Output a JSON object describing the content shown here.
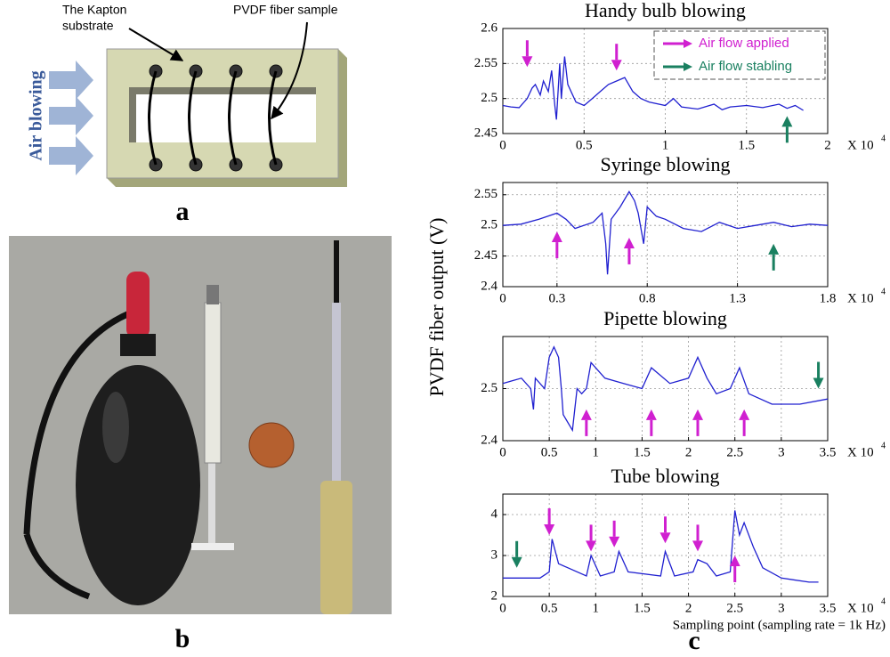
{
  "diagram": {
    "panel_label": "a",
    "air_label": "Air blowing",
    "substrate_label": [
      "The Kapton",
      "substrate"
    ],
    "fiber_label": "PVDF fiber sample"
  },
  "photo": {
    "panel_label": "b"
  },
  "figure_c": {
    "panel_label": "c",
    "y_label": "PVDF fiber output  (V)",
    "x_label": "Sampling point (sampling rate = 1k Hz)"
  },
  "chart_data": [
    {
      "type": "line",
      "title": "Handy bulb blowing",
      "x_multiplier": "X 10",
      "x_multiplier_power": "4",
      "xlim": [
        0,
        2
      ],
      "xticks": [
        0,
        0.5,
        1,
        1.5,
        2
      ],
      "ylim": [
        2.45,
        2.6
      ],
      "yticks": [
        2.45,
        2.5,
        2.55,
        2.6
      ],
      "grid": true,
      "series": [
        {
          "color": "#2020d0",
          "x": [
            0,
            0.05,
            0.1,
            0.15,
            0.18,
            0.2,
            0.23,
            0.25,
            0.28,
            0.3,
            0.32,
            0.33,
            0.35,
            0.36,
            0.38,
            0.4,
            0.45,
            0.5,
            0.55,
            0.6,
            0.65,
            0.7,
            0.75,
            0.8,
            0.85,
            0.9,
            1.0,
            1.05,
            1.1,
            1.2,
            1.3,
            1.35,
            1.4,
            1.5,
            1.6,
            1.7,
            1.75,
            1.8,
            1.85
          ],
          "values": [
            2.49,
            2.488,
            2.487,
            2.5,
            2.515,
            2.52,
            2.505,
            2.525,
            2.51,
            2.54,
            2.49,
            2.47,
            2.55,
            2.5,
            2.56,
            2.52,
            2.495,
            2.49,
            2.5,
            2.51,
            2.52,
            2.525,
            2.53,
            2.51,
            2.5,
            2.495,
            2.49,
            2.5,
            2.488,
            2.485,
            2.492,
            2.484,
            2.488,
            2.49,
            2.487,
            2.492,
            2.486,
            2.49,
            2.483
          ]
        }
      ],
      "legend": [
        {
          "label": "Air flow applied",
          "color": "#d020d0"
        },
        {
          "label": "Air flow stabling",
          "color": "#1a8060"
        }
      ],
      "annotations": [
        {
          "x": 0.15,
          "y": 2.545,
          "color": "#d020d0",
          "direction": "down"
        },
        {
          "x": 0.7,
          "y": 2.54,
          "color": "#d020d0",
          "direction": "down"
        },
        {
          "x": 1.75,
          "y": 2.475,
          "color": "#1a8060",
          "direction": "up"
        }
      ]
    },
    {
      "type": "line",
      "title": "Syringe blowing",
      "x_multiplier": "X 10",
      "x_multiplier_power": "4",
      "xlim": [
        0,
        1.8
      ],
      "xticks": [
        0,
        0.3,
        0.8,
        1.3,
        1.8
      ],
      "ylim": [
        2.4,
        2.57
      ],
      "yticks": [
        2.4,
        2.45,
        2.5,
        2.55
      ],
      "grid": true,
      "series": [
        {
          "color": "#2020d0",
          "x": [
            0,
            0.1,
            0.2,
            0.3,
            0.35,
            0.4,
            0.5,
            0.55,
            0.57,
            0.58,
            0.6,
            0.65,
            0.7,
            0.73,
            0.75,
            0.78,
            0.8,
            0.85,
            0.9,
            1.0,
            1.1,
            1.2,
            1.3,
            1.4,
            1.5,
            1.6,
            1.7,
            1.8
          ],
          "values": [
            2.5,
            2.502,
            2.51,
            2.52,
            2.51,
            2.495,
            2.505,
            2.52,
            2.47,
            2.42,
            2.51,
            2.53,
            2.555,
            2.54,
            2.52,
            2.47,
            2.53,
            2.515,
            2.51,
            2.495,
            2.49,
            2.505,
            2.495,
            2.5,
            2.505,
            2.498,
            2.502,
            2.5
          ]
        }
      ],
      "annotations": [
        {
          "x": 0.3,
          "y": 2.49,
          "color": "#d020d0",
          "direction": "up"
        },
        {
          "x": 0.7,
          "y": 2.48,
          "color": "#d020d0",
          "direction": "up"
        },
        {
          "x": 1.5,
          "y": 2.47,
          "color": "#1a8060",
          "direction": "up"
        }
      ]
    },
    {
      "type": "line",
      "title": "Pipette blowing",
      "x_multiplier": "X 10",
      "x_multiplier_power": "4",
      "xlim": [
        0,
        3.5
      ],
      "xticks": [
        0,
        0.5,
        1,
        1.5,
        2,
        2.5,
        3,
        3.5
      ],
      "ylim": [
        2.4,
        2.6
      ],
      "yticks": [
        2.4,
        2.5
      ],
      "grid": true,
      "series": [
        {
          "color": "#2020d0",
          "x": [
            0,
            0.1,
            0.2,
            0.3,
            0.33,
            0.35,
            0.45,
            0.5,
            0.55,
            0.6,
            0.63,
            0.65,
            0.75,
            0.8,
            0.85,
            0.9,
            0.95,
            1.1,
            1.3,
            1.5,
            1.6,
            1.8,
            2.0,
            2.1,
            2.2,
            2.3,
            2.45,
            2.55,
            2.65,
            2.9,
            3.2,
            3.5
          ],
          "values": [
            2.51,
            2.515,
            2.52,
            2.5,
            2.46,
            2.52,
            2.5,
            2.56,
            2.58,
            2.56,
            2.5,
            2.45,
            2.42,
            2.5,
            2.49,
            2.5,
            2.55,
            2.52,
            2.51,
            2.5,
            2.54,
            2.51,
            2.52,
            2.56,
            2.52,
            2.49,
            2.5,
            2.54,
            2.49,
            2.47,
            2.47,
            2.48
          ]
        }
      ],
      "annotations": [
        {
          "x": 0.9,
          "y": 2.46,
          "color": "#d020d0",
          "direction": "up"
        },
        {
          "x": 1.6,
          "y": 2.46,
          "color": "#d020d0",
          "direction": "up"
        },
        {
          "x": 2.1,
          "y": 2.46,
          "color": "#d020d0",
          "direction": "up"
        },
        {
          "x": 2.6,
          "y": 2.46,
          "color": "#d020d0",
          "direction": "up"
        },
        {
          "x": 3.4,
          "y": 2.5,
          "color": "#1a8060",
          "direction": "down"
        }
      ]
    },
    {
      "type": "line",
      "title": "Tube blowing",
      "x_multiplier": "X 10",
      "x_multiplier_power": "4",
      "xlim": [
        0,
        3.5
      ],
      "xticks": [
        0,
        0.5,
        1,
        1.5,
        2,
        2.5,
        3,
        3.5
      ],
      "ylim": [
        2,
        4.5
      ],
      "yticks": [
        2,
        3,
        4
      ],
      "grid": true,
      "series": [
        {
          "color": "#2020d0",
          "x": [
            0,
            0.4,
            0.5,
            0.53,
            0.6,
            0.9,
            0.95,
            1.05,
            1.2,
            1.25,
            1.35,
            1.7,
            1.75,
            1.85,
            2.05,
            2.1,
            2.2,
            2.3,
            2.45,
            2.5,
            2.55,
            2.6,
            2.7,
            2.8,
            3.0,
            3.3,
            3.4
          ],
          "values": [
            2.45,
            2.45,
            2.6,
            3.4,
            2.8,
            2.5,
            3.0,
            2.5,
            2.6,
            3.1,
            2.6,
            2.5,
            3.1,
            2.5,
            2.6,
            2.9,
            2.8,
            2.5,
            2.6,
            4.1,
            3.5,
            3.8,
            3.2,
            2.7,
            2.45,
            2.35,
            2.35
          ]
        }
      ],
      "annotations": [
        {
          "x": 0.15,
          "y": 2.7,
          "color": "#1a8060",
          "direction": "down"
        },
        {
          "x": 0.5,
          "y": 3.5,
          "color": "#d020d0",
          "direction": "down"
        },
        {
          "x": 0.95,
          "y": 3.1,
          "color": "#d020d0",
          "direction": "down"
        },
        {
          "x": 1.2,
          "y": 3.2,
          "color": "#d020d0",
          "direction": "down"
        },
        {
          "x": 1.75,
          "y": 3.3,
          "color": "#d020d0",
          "direction": "down"
        },
        {
          "x": 2.1,
          "y": 3.1,
          "color": "#d020d0",
          "direction": "down"
        },
        {
          "x": 2.5,
          "y": 3.0,
          "color": "#d020d0",
          "direction": "up"
        }
      ]
    }
  ]
}
